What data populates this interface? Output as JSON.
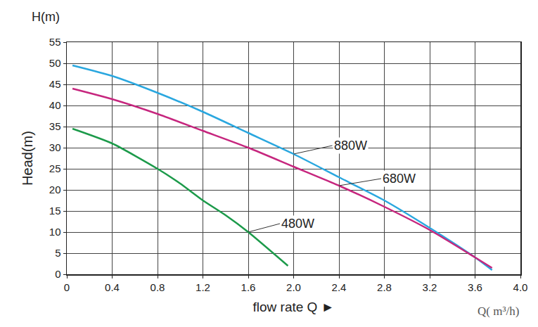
{
  "chart_data": {
    "type": "line",
    "x_label": "flow rate Q ►",
    "x_unit_label": "Q( m³/h)",
    "y_label": "Head(m)",
    "y_unit_label": "H(m)",
    "grid": true,
    "series": [
      {
        "name": "880W",
        "color": "#2aa7df",
        "x": [
          0.05,
          0.4,
          0.8,
          1.2,
          1.6,
          2.0,
          2.4,
          2.8,
          3.2,
          3.6,
          3.75
        ],
        "values": [
          49.5,
          47,
          43,
          38.5,
          33.5,
          28.5,
          23,
          17.5,
          11,
          4,
          1
        ]
      },
      {
        "name": "680W",
        "color": "#c6267e",
        "x": [
          0.05,
          0.4,
          0.8,
          1.2,
          1.6,
          2.0,
          2.4,
          2.8,
          3.2,
          3.6,
          3.75
        ],
        "values": [
          44,
          41.5,
          38,
          34,
          30,
          25.5,
          21,
          16,
          10.5,
          4,
          1.5
        ]
      },
      {
        "name": "480W",
        "color": "#1c9a4a",
        "x": [
          0.05,
          0.4,
          0.8,
          1.0,
          1.2,
          1.4,
          1.6,
          1.95
        ],
        "values": [
          34.5,
          31,
          25,
          21.5,
          17.5,
          14,
          10,
          2
        ]
      }
    ],
    "xlim": [
      0,
      4
    ],
    "xticks": [
      0,
      0.4,
      0.8,
      1.2,
      1.6,
      {
        "value": 2,
        "label": "2.0"
      },
      2.4,
      2.8,
      3.2,
      3.6,
      {
        "value": 4,
        "label": "4.0"
      }
    ],
    "ylim": [
      0,
      55
    ],
    "yticks": [
      0,
      5,
      10,
      15,
      20,
      25,
      30,
      35,
      40,
      45,
      50,
      55
    ]
  }
}
